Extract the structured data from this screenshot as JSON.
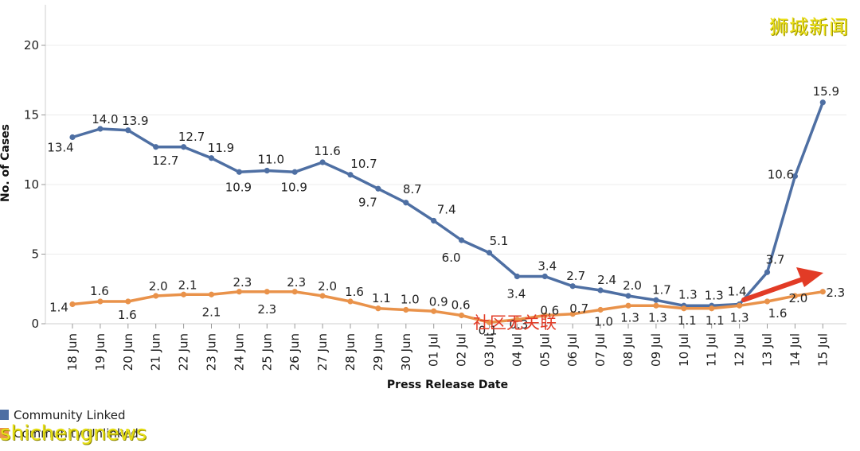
{
  "chart_data": {
    "type": "line",
    "categories": [
      "18 Jun",
      "19 Jun",
      "20 Jun",
      "21 Jun",
      "22 Jun",
      "23 Jun",
      "24 Jun",
      "25 Jun",
      "26 Jun",
      "27 Jun",
      "28 Jun",
      "29 Jun",
      "30 Jun",
      "01 Jul",
      "02 Jul",
      "03 Jul",
      "04 Jul",
      "05 Jul",
      "06 Jul",
      "07 Jul",
      "08 Jul",
      "09 Jul",
      "10 Jul",
      "11 Jul",
      "12 Jul",
      "13 Jul",
      "14 Jul",
      "15 Jul"
    ],
    "series": [
      {
        "name": "Community Linked",
        "color": "#4e6fa3",
        "values": [
          13.4,
          14.0,
          13.9,
          12.7,
          12.7,
          11.9,
          10.9,
          11.0,
          10.9,
          11.6,
          10.7,
          9.7,
          8.7,
          7.4,
          6.0,
          5.1,
          3.4,
          3.4,
          2.7,
          2.4,
          2.0,
          1.7,
          1.3,
          1.3,
          1.4,
          3.7,
          10.6,
          15.9
        ],
        "labels": [
          "13.4",
          "14.0",
          "13.9",
          "12.7",
          "12.7",
          "11.9",
          "10.9",
          "11.0",
          "10.9",
          "11.6",
          "10.7",
          "9.7",
          "8.7",
          "7.4",
          "6.0",
          "5.1",
          "3.4",
          "3.4",
          "2.7",
          "2.4",
          "2.0",
          "1.7",
          "1.3",
          "1.3",
          "1.4",
          "3.7",
          "10.6",
          "15.9"
        ]
      },
      {
        "name": "Community Unlinked",
        "color": "#e9924a",
        "values": [
          1.4,
          1.6,
          1.6,
          2.0,
          2.1,
          2.1,
          2.3,
          2.3,
          2.3,
          2.0,
          1.6,
          1.1,
          1.0,
          0.9,
          0.6,
          0.1,
          0.3,
          0.6,
          0.7,
          1.0,
          1.3,
          1.3,
          1.1,
          1.1,
          1.3,
          1.6,
          2.0,
          2.3
        ],
        "labels": [
          "1.4",
          "1.6",
          "1.6",
          "2.0",
          "2.1",
          "2.1",
          "2.3",
          "2.3",
          "2.3",
          "2.0",
          "1.6",
          "1.1",
          "1.0",
          "0.9",
          "0.6",
          "0.1",
          "0.3",
          "0.6",
          "0.7",
          "1.0",
          "1.3",
          "1.3",
          "1.1",
          "1.1",
          "1.3",
          "1.6",
          "2.0",
          "2.3"
        ]
      }
    ],
    "xlabel": "Press Release Date",
    "ylabel": "No. of Cases",
    "ylim": [
      0,
      22
    ],
    "yticks": [
      0,
      5,
      10,
      15,
      20
    ],
    "grid": true,
    "legend": "bottom-left"
  },
  "annotation": {
    "text": "社区无关联",
    "arrow_color": "#e23b26"
  },
  "watermarks": {
    "top_right": "狮城新闻",
    "bottom_left": "shichengnews"
  }
}
